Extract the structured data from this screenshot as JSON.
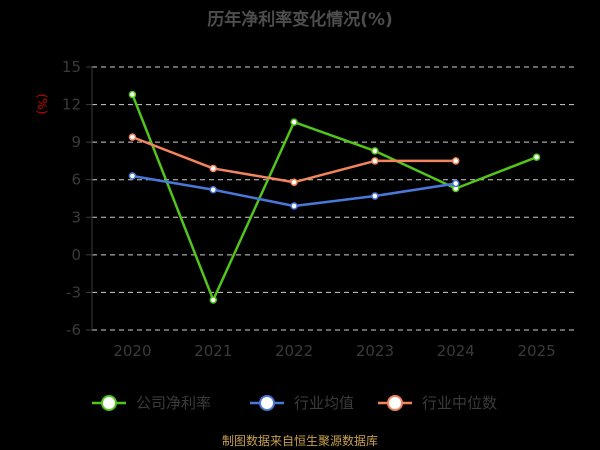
{
  "chart_data": {
    "type": "line",
    "title": "历年净利率变化情况(%)",
    "unit_label": "(%)",
    "categories": [
      "2020",
      "2021",
      "2022",
      "2023",
      "2024",
      "2025"
    ],
    "ylim": [
      -6,
      15
    ],
    "yticks": [
      "15",
      "12",
      "9",
      "6",
      "3",
      "0",
      "-3",
      "-6"
    ],
    "grid": true,
    "legend_position": "bottom",
    "series": [
      {
        "name": "公司净利率",
        "color": "#52c41a",
        "values": [
          12.8,
          -3.6,
          10.6,
          8.3,
          5.3,
          7.8
        ]
      },
      {
        "name": "行业均值",
        "color": "#4a78d8",
        "values": [
          6.3,
          5.2,
          3.9,
          4.7,
          5.7,
          null
        ]
      },
      {
        "name": "行业中位数",
        "color": "#f4845f",
        "values": [
          9.4,
          6.9,
          5.8,
          7.5,
          7.5,
          null
        ]
      }
    ],
    "source": "制图数据来自恒生聚源数据库"
  }
}
